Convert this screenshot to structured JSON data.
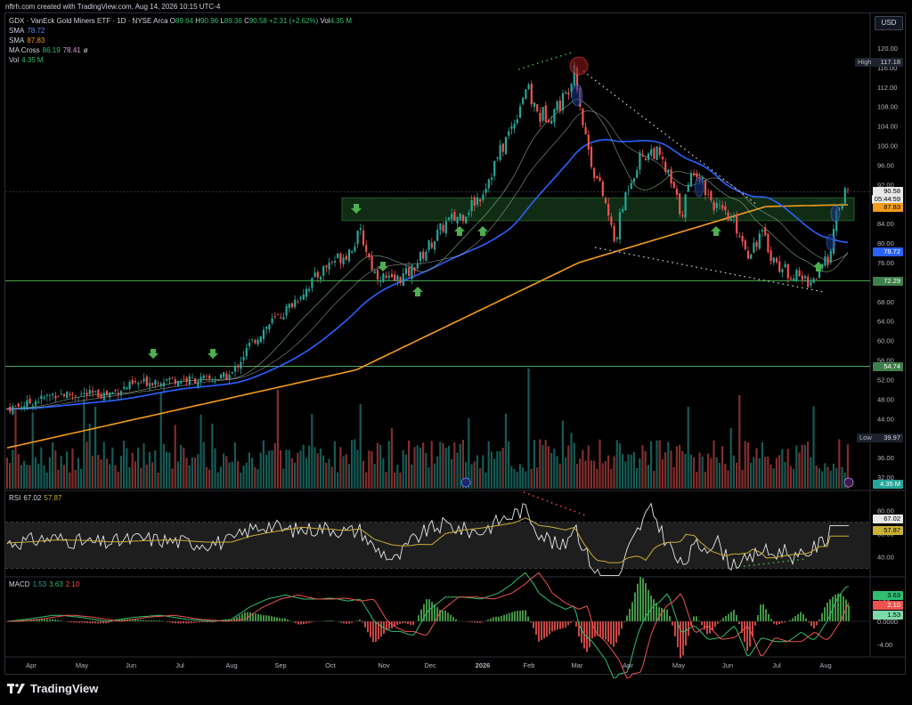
{
  "credit": "nftrh.com created with TradingView.com, Aug 14, 2026 10:15 UTC-4",
  "legend": {
    "title": "GDX · VanEck Gold Miners ETF · 1D · NYSE Arca",
    "ohlc": [
      {
        "k": "O",
        "v": "89.64"
      },
      {
        "k": "H",
        "v": "90.96"
      },
      {
        "k": "L",
        "v": "89.36"
      },
      {
        "k": "C",
        "v": "90.58"
      }
    ],
    "change": "+2.31 (+2.62%)",
    "vol_label": "Vol",
    "vol_value": "4.35 M",
    "sma1_label": "SMA",
    "sma1_value": "78.72",
    "sma2_label": "SMA",
    "sma2_value": "87.83",
    "macross_label": "MA Cross",
    "macross_v1": "86.19",
    "macross_v2": "78.41",
    "macross_sym": "ø",
    "vol2_label": "Vol",
    "vol2_value": "4.35 M"
  },
  "currency_button": "USD",
  "price_axis": {
    "ticks": [
      "120.00",
      "116.00",
      "112.00",
      "108.00",
      "104.00",
      "100.00",
      "96.00",
      "92.00",
      "88.00",
      "84.00",
      "80.00",
      "76.00",
      "72.00",
      "68.00",
      "64.00",
      "60.00",
      "56.00",
      "52.00",
      "48.00",
      "44.00",
      "40.00",
      "36.00",
      "32.00"
    ],
    "high_label": "High",
    "high_value": "117.18",
    "low_label": "Low",
    "low_value": "39.97",
    "last_price": "90.58",
    "countdown": "05:44:59",
    "sma_orange": "87.83",
    "sma_blue": "78.72",
    "line_72": "72.29",
    "line_54": "54.74",
    "vol_tag": "4.35 M"
  },
  "rsi": {
    "label": "RSI",
    "v1": "67.02",
    "v2": "57.87",
    "ticks": [
      "80.00",
      "60.00",
      "40.00"
    ],
    "tag1": "67.02",
    "tag2": "57.87"
  },
  "macd": {
    "label": "MACD",
    "v1": "1.53",
    "v2": "3.63",
    "v3": "2.10",
    "ticks": [
      "4.00",
      "0.0000",
      "-4.00"
    ],
    "tag1": "3.63",
    "tag2": "2.10",
    "tag3": "1.53"
  },
  "time_axis": [
    "Apr",
    "May",
    "Jun",
    "Jul",
    "Aug",
    "Sep",
    "Oct",
    "Nov",
    "Dec",
    "2026",
    "Feb",
    "Mar",
    "Apr",
    "May",
    "Jun",
    "Jul",
    "Aug"
  ],
  "brand": "TradingView",
  "colors": {
    "up": "#26a69a",
    "down": "#ef5350",
    "sma_blue": "#2962ff",
    "sma_orange": "#f59c1a",
    "rsi_line": "#e8e8e8",
    "rsi_ma": "#c9b037",
    "macd_line": "#26a69a",
    "signal": "#ef5350",
    "zone": "#1b3b1f"
  },
  "chart_data": {
    "type": "line",
    "title": "GDX · VanEck Gold Miners ETF · 1D · NYSE Arca",
    "price_approx": [
      {
        "x": "Apr",
        "y": 46
      },
      {
        "x": "May",
        "y": 49
      },
      {
        "x": "Jun",
        "y": 51
      },
      {
        "x": "Jul",
        "y": 51
      },
      {
        "x": "Aug",
        "y": 52
      },
      {
        "x": "Sep",
        "y": 62
      },
      {
        "x": "Oct",
        "y": 76
      },
      {
        "x": "Nov",
        "y": 72
      },
      {
        "x": "Dec",
        "y": 82
      },
      {
        "x": "2026",
        "y": 90
      },
      {
        "x": "Feb",
        "y": 112
      },
      {
        "x": "Mar",
        "y": 116
      },
      {
        "x": "Apr",
        "y": 80
      },
      {
        "x": "May",
        "y": 96
      },
      {
        "x": "Jun",
        "y": 84
      },
      {
        "x": "Jul",
        "y": 72
      },
      {
        "x": "Aug",
        "y": 90.58
      }
    ],
    "ylim": [
      30,
      122
    ],
    "horizontal_levels": [
      72.29,
      54.74
    ],
    "zone": [
      84.5,
      89.5
    ],
    "high": 117.18,
    "low": 39.97
  }
}
